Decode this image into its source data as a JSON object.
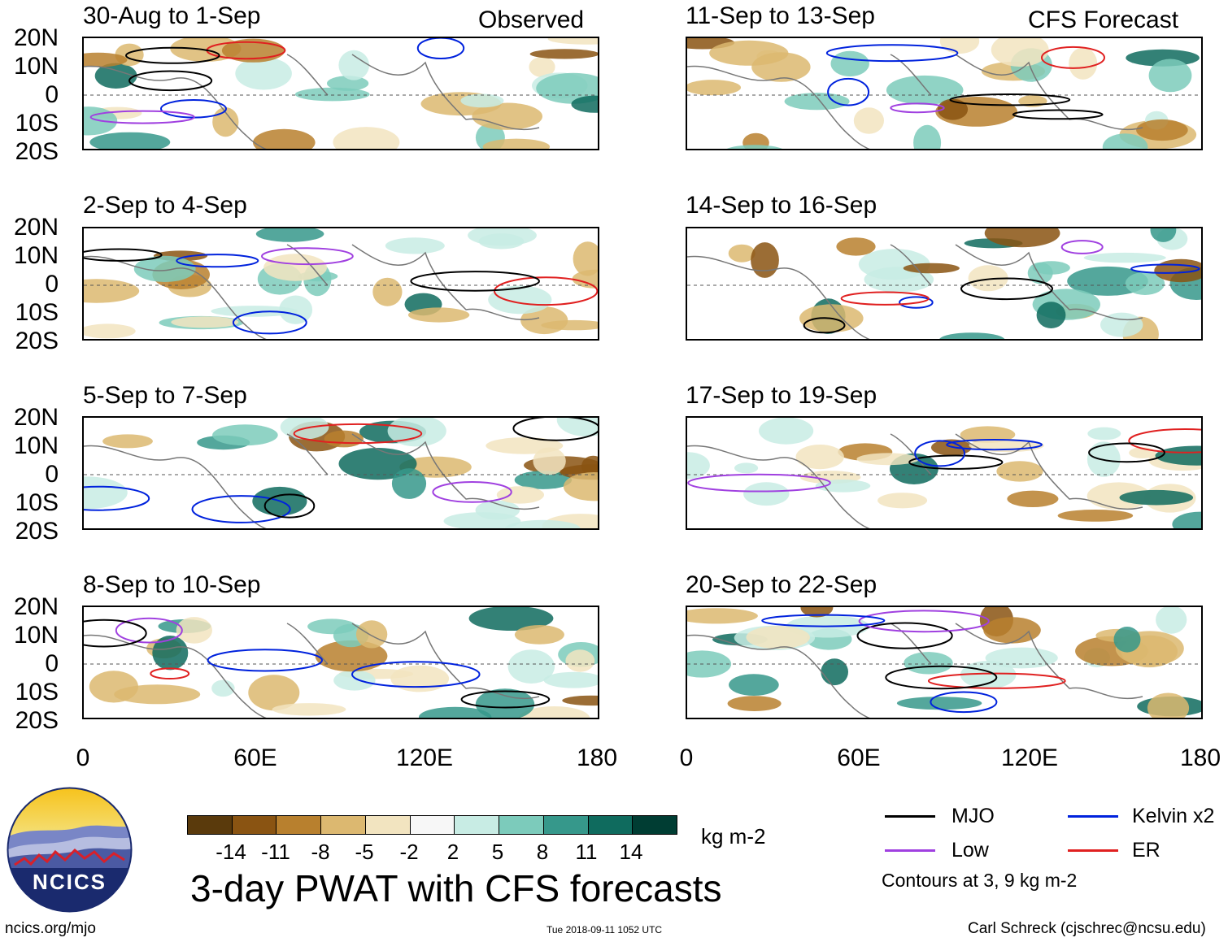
{
  "title": "3-day PWAT with CFS forecasts",
  "headers": {
    "observed": "Observed",
    "forecast": "CFS Forecast"
  },
  "panels_left": [
    {
      "period": "30-Aug to 1-Sep"
    },
    {
      "period": "2-Sep to 4-Sep"
    },
    {
      "period": "5-Sep to 7-Sep"
    },
    {
      "period": "8-Sep to 10-Sep"
    }
  ],
  "panels_right": [
    {
      "period": "11-Sep to 13-Sep"
    },
    {
      "period": "14-Sep to 16-Sep"
    },
    {
      "period": "17-Sep to 19-Sep"
    },
    {
      "period": "20-Sep to 22-Sep"
    }
  ],
  "lat_labels": [
    "20N",
    "10N",
    "0",
    "10S",
    "20S"
  ],
  "lon_labels": [
    "0",
    "60E",
    "120E",
    "180"
  ],
  "colorbar": {
    "unit": "kg m-2",
    "tick_labels": [
      "-14",
      "-11",
      "-8",
      "-5",
      "-2",
      "2",
      "5",
      "8",
      "11",
      "14"
    ],
    "colors": [
      "#5a3a0c",
      "#8a5412",
      "#b8802e",
      "#dcb870",
      "#f2e4c0",
      "#f7f7f7",
      "#c8ece4",
      "#7ccbbb",
      "#36988b",
      "#0f6b5e",
      "#003d33"
    ]
  },
  "legend": {
    "items": [
      {
        "label": "MJO",
        "color": "#000000"
      },
      {
        "label": "Kelvin x2",
        "color": "#0022dd"
      },
      {
        "label": "Low",
        "color": "#a040e0"
      },
      {
        "label": "ER",
        "color": "#e02020"
      }
    ],
    "note": "Contours at 3, 9 kg m-2"
  },
  "logo": {
    "text": "NCICS"
  },
  "footer": {
    "url": "ncics.org/mjo",
    "timestamp": "Tue 2018-09-11 1052 UTC",
    "credit": "Carl Schreck (cjschrec@ncsu.edu)"
  }
}
